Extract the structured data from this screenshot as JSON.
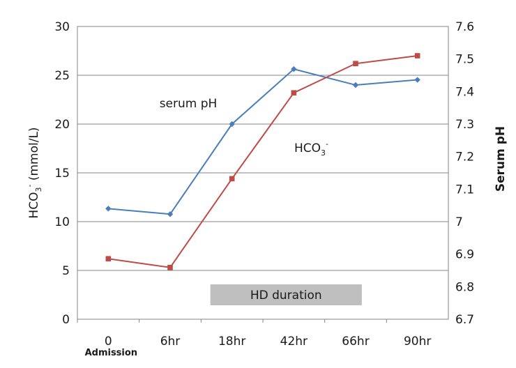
{
  "chart_data": {
    "type": "line",
    "categories": [
      "0",
      "6hr",
      "18hr",
      "42hr",
      "66hr",
      "90hr"
    ],
    "category_sublabels": [
      "Admission",
      "",
      "",
      "",
      "",
      ""
    ],
    "y_left": {
      "label_main": "HCO",
      "label_sub": "3",
      "label_sup": "-",
      "label_rest": " (mmol/L)",
      "range": [
        0,
        30
      ],
      "ticks": [
        "0",
        "5",
        "10",
        "15",
        "20",
        "25",
        "30"
      ]
    },
    "y_right": {
      "label": "Serum pH",
      "range": [
        6.7,
        7.6
      ],
      "ticks": [
        "6.7",
        "6.8",
        "6.9",
        "7",
        "7.1",
        "7.2",
        "7.3",
        "7.4",
        "7.5",
        "7.6"
      ]
    },
    "series": [
      {
        "axis": "right",
        "color": "#4a7ebb",
        "marker": "diamond",
        "values": [
          7.04,
          7.023,
          7.3,
          7.469,
          7.42,
          7.436
        ]
      },
      {
        "axis": "left",
        "color": "#be4b48",
        "marker": "square",
        "values": [
          6.2,
          5.3,
          14.4,
          23.2,
          26.2,
          27.0
        ]
      }
    ],
    "annotations": {
      "ph_label": "serum pH",
      "hco3_main": "HCO",
      "hco3_sub": "3",
      "hco3_sup": "-",
      "hd_label": "HD duration"
    },
    "hd_bar": {
      "from_category": "6hr",
      "to_category": "66hr",
      "color": "#bfbfbf"
    },
    "grid": true,
    "legend": "none"
  }
}
